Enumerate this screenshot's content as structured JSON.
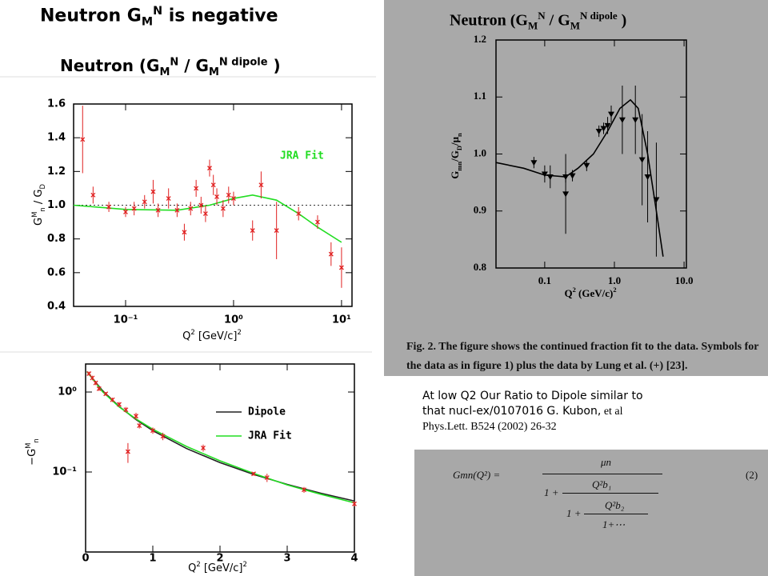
{
  "slide": {
    "heading": [
      "Neutron G",
      {
        "text": "M",
        "shift": "sub"
      },
      {
        "text": "N",
        "shift": "sup"
      },
      " is negative"
    ],
    "left_title": [
      "Neutron (G",
      {
        "text": "M",
        "shift": "sub"
      },
      {
        "text": "N",
        "shift": "sup"
      },
      " / G",
      {
        "text": "M",
        "shift": "sub"
      },
      {
        "text": "N dipole",
        "shift": "sup"
      },
      " )"
    ],
    "right_title": [
      "Neutron (G",
      {
        "text": "M",
        "shift": "sub"
      },
      {
        "text": "N",
        "shift": "sup"
      },
      " / G",
      {
        "text": "M",
        "shift": "sub"
      },
      {
        "text": "N dipole",
        "shift": "sup"
      },
      " )"
    ],
    "caption": [
      "Fig. 2.  The figure shows the continued fraction fit to the data. Symbols for",
      "the data as in figure 1) plus the data by Lung et al. (+) [23]."
    ],
    "note": [
      "At low Q2 Our  Ratio to Dipole similar to",
      "that nucl-ex/0107016 G. Kubon,",
      " et al",
      "Phys.Lett. B524 (2002) 26-32"
    ],
    "formula": {
      "lhs": "Gmn(Q²) =",
      "numer": "μn",
      "one": "1 +",
      "q1": "Q²b₁",
      "q2": "Q²b₂",
      "tail": "1+⋯",
      "eq": "(2)"
    }
  },
  "chart_data": [
    {
      "type": "scatter",
      "log_x": true,
      "xlim": [
        0.033,
        12.5
      ],
      "ylim": [
        0.4,
        1.6
      ],
      "xticks": [
        {
          "value": 0.1,
          "label": "10⁻¹"
        },
        {
          "value": 1,
          "label": "10⁰"
        },
        {
          "value": 10,
          "label": "10¹"
        }
      ],
      "yticks": [
        0.4,
        0.6,
        0.8,
        {
          "value": 1,
          "label": "1.0"
        },
        1.2,
        1.4,
        1.6
      ],
      "reference_line": 1,
      "x_label": [
        "Q",
        {
          "text": "2",
          "shift": "sup"
        },
        " [GeV/c]",
        {
          "text": "2",
          "shift": "sup"
        }
      ],
      "y_label": [
        "G",
        {
          "text": "M",
          "shift": "sup"
        },
        {
          "text": "n",
          "shift": "sub"
        },
        " / G",
        {
          "text": "D",
          "shift": "sub"
        }
      ],
      "legend": "upper right",
      "legend_swatch": false,
      "series": [
        {
          "name": "JRA Fit",
          "color": "#22dd22",
          "style": "line",
          "x": [
            0.033,
            0.1,
            0.3,
            0.6,
            1,
            1.5,
            2.5,
            4,
            6,
            10
          ],
          "values": [
            1.0,
            0.975,
            0.97,
            1.0,
            1.04,
            1.06,
            1.03,
            0.95,
            0.87,
            0.78
          ]
        },
        {
          "color": "#e02020",
          "style": "points",
          "marker": "x",
          "x": [
            0.04,
            0.05,
            0.07,
            0.1,
            0.12,
            0.15,
            0.18,
            0.2,
            0.25,
            0.3,
            0.35,
            0.4,
            0.45,
            0.5,
            0.55,
            0.6,
            0.65,
            0.7,
            0.8,
            0.9,
            1.0,
            1.5,
            1.8,
            2.5,
            4,
            6,
            8,
            10
          ],
          "values": [
            1.39,
            1.06,
            0.99,
            0.96,
            0.98,
            1.02,
            1.08,
            0.97,
            1.04,
            0.97,
            0.84,
            0.98,
            1.1,
            1.0,
            0.95,
            1.22,
            1.12,
            1.05,
            0.98,
            1.06,
            1.04,
            0.85,
            1.12,
            0.85,
            0.95,
            0.9,
            0.71,
            0.63
          ],
          "errors": [
            0.2,
            0.05,
            0.03,
            0.03,
            0.04,
            0.04,
            0.07,
            0.04,
            0.06,
            0.04,
            0.05,
            0.04,
            0.05,
            0.05,
            0.05,
            0.05,
            0.06,
            0.05,
            0.05,
            0.05,
            0.04,
            0.06,
            0.08,
            0.17,
            0.04,
            0.04,
            0.07,
            0.12
          ]
        }
      ]
    },
    {
      "type": "scatter",
      "log_y": true,
      "xlim": [
        0,
        4
      ],
      "ylim": [
        0.01,
        2.24
      ],
      "xticks": [
        0,
        1,
        2,
        3,
        4
      ],
      "yticks": [
        {
          "value": 0.1,
          "label": "10⁻¹"
        },
        {
          "value": 1,
          "label": "10⁰"
        }
      ],
      "x_label": [
        "Q",
        {
          "text": "2",
          "shift": "sup"
        },
        " [GeV/c]",
        {
          "text": "2",
          "shift": "sup"
        }
      ],
      "y_label": [
        "−G",
        {
          "text": "M",
          "shift": "sup"
        },
        {
          "text": "n",
          "shift": "sub"
        }
      ],
      "legend": "upper right",
      "legend_swatch": true,
      "series": [
        {
          "name": "Dipole",
          "color": "#222222",
          "style": "line",
          "x": [
            0.02,
            0.25,
            0.5,
            0.75,
            1,
            1.5,
            2,
            2.5,
            3,
            3.5,
            4
          ],
          "values": [
            1.807,
            1.045,
            0.658,
            0.452,
            0.329,
            0.197,
            0.131,
            0.0934,
            0.07,
            0.0543,
            0.0434
          ]
        },
        {
          "name": "JRA Fit",
          "color": "#22dd22",
          "style": "line",
          "x": [
            0.02,
            0.25,
            0.5,
            0.75,
            1,
            1.5,
            2,
            2.5,
            3,
            3.5,
            4
          ],
          "values": [
            1.807,
            1.014,
            0.651,
            0.461,
            0.342,
            0.209,
            0.138,
            0.096,
            0.069,
            0.0527,
            0.0412
          ]
        },
        {
          "color": "#e02020",
          "style": "points",
          "marker": "x",
          "x": [
            0.05,
            0.1,
            0.15,
            0.2,
            0.3,
            0.4,
            0.5,
            0.6,
            0.63,
            0.75,
            0.8,
            1,
            1.15,
            1.75,
            2.5,
            2.7,
            3.25,
            4
          ],
          "values": [
            1.7,
            1.5,
            1.3,
            1.1,
            0.95,
            0.8,
            0.7,
            0.6,
            0.18,
            0.5,
            0.38,
            0.33,
            0.28,
            0.2,
            0.095,
            0.085,
            0.06,
            0.04
          ],
          "errors": [
            0.1,
            0.1,
            0.08,
            0.07,
            0.05,
            0.05,
            0.05,
            0.05,
            0.05,
            0.05,
            0.03,
            0.03,
            0.03,
            0.02,
            0.005,
            0.01,
            0.005,
            0.003
          ]
        }
      ]
    },
    {
      "type": "scatter",
      "log_x": true,
      "xlim": [
        0.02,
        10.8
      ],
      "ylim": [
        0.8,
        1.2
      ],
      "xticks": [
        0.1,
        {
          "value": 1,
          "label": "1.0"
        },
        {
          "value": 10,
          "label": "10.0"
        }
      ],
      "yticks": [
        0.8,
        0.9,
        {
          "value": 1,
          "label": "1.0"
        },
        1.1,
        1.2
      ],
      "x_label": [
        "Q",
        {
          "text": "2",
          "shift": "sup"
        },
        " (GeV/c)",
        {
          "text": "2",
          "shift": "sup"
        }
      ],
      "y_label": [
        "G",
        {
          "text": "mn",
          "shift": "sub"
        },
        "/G",
        {
          "text": "D",
          "shift": "sub"
        },
        "/μ",
        {
          "text": "n",
          "shift": "sub"
        }
      ],
      "series": [
        {
          "color": "#000000",
          "style": "line",
          "x": [
            0.02,
            0.05,
            0.1,
            0.2,
            0.3,
            0.5,
            0.8,
            1.2,
            1.7,
            2.2,
            3,
            4,
            5
          ],
          "values": [
            0.985,
            0.975,
            0.963,
            0.96,
            0.975,
            1.0,
            1.04,
            1.08,
            1.095,
            1.08,
            1.0,
            0.9,
            0.82
          ]
        },
        {
          "color": "#000000",
          "style": "points",
          "marker": "triangle",
          "x": [
            0.07,
            0.1,
            0.12,
            0.2,
            0.25,
            0.4,
            0.6,
            0.7,
            0.8,
            0.9,
            0.2,
            1.3,
            2,
            2.5,
            3,
            4
          ],
          "values": [
            0.985,
            0.965,
            0.96,
            0.96,
            0.962,
            0.98,
            1.04,
            1.045,
            1.05,
            1.07,
            0.93,
            1.06,
            1.06,
            0.99,
            0.96,
            0.92
          ],
          "errors": [
            0.01,
            0.015,
            0.02,
            0.01,
            0.01,
            0.01,
            0.01,
            0.01,
            0.015,
            0.015,
            0.07,
            0.06,
            0.06,
            0.08,
            0.08,
            0.1
          ]
        }
      ]
    }
  ]
}
